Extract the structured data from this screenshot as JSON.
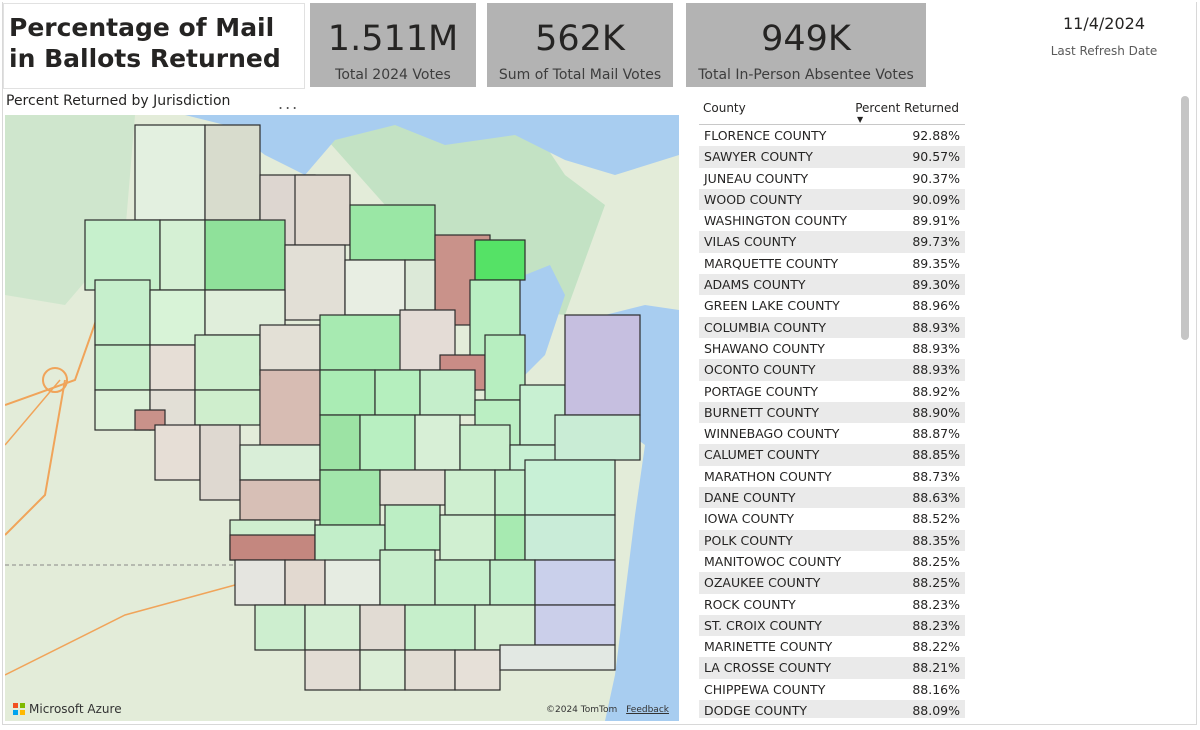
{
  "header": {
    "title": "Percentage of Mail in Ballots Returned",
    "refresh_date": "11/4/2024",
    "refresh_label": "Last Refresh Date"
  },
  "kpis": [
    {
      "value": "1.511M",
      "label": "Total 2024 Votes"
    },
    {
      "value": "562K",
      "label": "Sum of Total Mail Votes"
    },
    {
      "value": "949K",
      "label": "Total In-Person Absentee Votes"
    }
  ],
  "map": {
    "title": "Percent Returned by Jurisdiction",
    "more_options": "...",
    "brand": "Microsoft Azure",
    "attribution": "©2024 TomTom",
    "feedback": "Feedback",
    "colors": {
      "land": "#dfe9d6",
      "water": "#a8cdf0",
      "forest": "#b8dcbc",
      "border": "#2c2c2c"
    }
  },
  "table": {
    "col_county": "County",
    "col_percent": "Percent Returned",
    "rows": [
      {
        "county": "FLORENCE COUNTY",
        "pct": "92.88%"
      },
      {
        "county": "SAWYER COUNTY",
        "pct": "90.57%"
      },
      {
        "county": "JUNEAU COUNTY",
        "pct": "90.37%"
      },
      {
        "county": "WOOD COUNTY",
        "pct": "90.09%"
      },
      {
        "county": "WASHINGTON COUNTY",
        "pct": "89.91%"
      },
      {
        "county": "VILAS COUNTY",
        "pct": "89.73%"
      },
      {
        "county": "MARQUETTE COUNTY",
        "pct": "89.35%"
      },
      {
        "county": "ADAMS COUNTY",
        "pct": "89.30%"
      },
      {
        "county": "GREEN LAKE COUNTY",
        "pct": "88.96%"
      },
      {
        "county": "COLUMBIA COUNTY",
        "pct": "88.93%"
      },
      {
        "county": "SHAWANO COUNTY",
        "pct": "88.93%"
      },
      {
        "county": "OCONTO COUNTY",
        "pct": "88.93%"
      },
      {
        "county": "PORTAGE COUNTY",
        "pct": "88.92%"
      },
      {
        "county": "BURNETT COUNTY",
        "pct": "88.90%"
      },
      {
        "county": "WINNEBAGO COUNTY",
        "pct": "88.87%"
      },
      {
        "county": "CALUMET COUNTY",
        "pct": "88.85%"
      },
      {
        "county": "MARATHON COUNTY",
        "pct": "88.73%"
      },
      {
        "county": "DANE COUNTY",
        "pct": "88.63%"
      },
      {
        "county": "IOWA COUNTY",
        "pct": "88.52%"
      },
      {
        "county": "POLK COUNTY",
        "pct": "88.35%"
      },
      {
        "county": "MANITOWOC COUNTY",
        "pct": "88.25%"
      },
      {
        "county": "OZAUKEE COUNTY",
        "pct": "88.25%"
      },
      {
        "county": "ROCK COUNTY",
        "pct": "88.23%"
      },
      {
        "county": "ST. CROIX COUNTY",
        "pct": "88.23%"
      },
      {
        "county": "MARINETTE COUNTY",
        "pct": "88.22%"
      },
      {
        "county": "LA CROSSE COUNTY",
        "pct": "88.21%"
      },
      {
        "county": "CHIPPEWA COUNTY",
        "pct": "88.16%"
      },
      {
        "county": "DODGE COUNTY",
        "pct": "88.09%"
      }
    ]
  }
}
